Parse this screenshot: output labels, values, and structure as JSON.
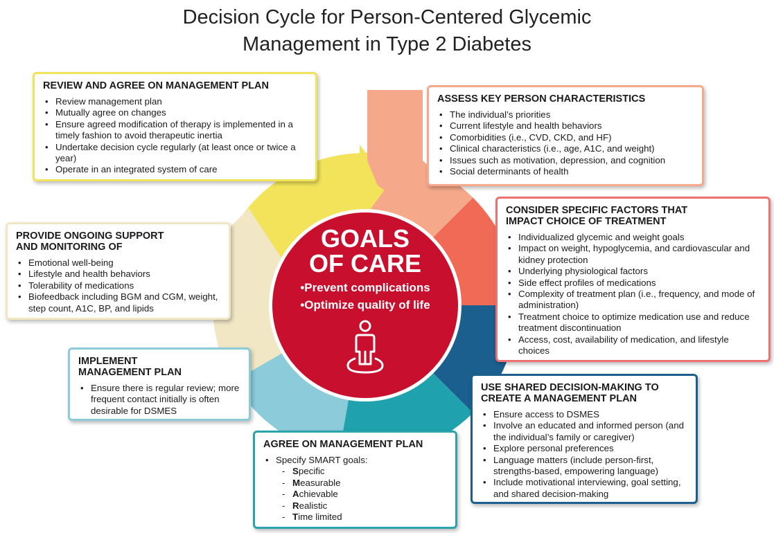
{
  "title_lines": [
    "Decision Cycle for Person-Centered Glycemic",
    "Management in Type 2 Diabetes"
  ],
  "center": {
    "heading_lines": [
      "GOALS",
      "OF CARE"
    ],
    "bullets": [
      "Prevent complications",
      "Optimize quality of life"
    ],
    "color": "#c8102e",
    "icon": "person-standing-icon"
  },
  "steps": {
    "review": {
      "heading": "REVIEW AND AGREE ON MANAGEMENT PLAN",
      "items": [
        "Review management plan",
        "Mutually agree on changes",
        "Ensure agreed modification of therapy is implemented in a timely fashion to avoid therapeutic inertia",
        "Undertake decision cycle regularly (at least once or twice a year)",
        "Operate in an integrated system of care"
      ],
      "color": "#f2e35a"
    },
    "assess": {
      "heading": "ASSESS KEY PERSON CHARACTERISTICS",
      "items": [
        "The individual’s priorities",
        "Current lifestyle and health behaviors",
        "Comorbidities (i.e., CVD, CKD, and HF)",
        "Clinical characteristics (i.e., age, A1C, and weight)",
        "Issues such as motivation, depression, and cognition",
        "Social determinants of health"
      ],
      "color": "#f5a98a"
    },
    "consider": {
      "heading_lines": [
        "CONSIDER SPECIFIC FACTORS THAT",
        "IMPACT CHOICE OF TREATMENT"
      ],
      "items": [
        "Individualized glycemic and weight goals",
        "Impact on weight, hypoglycemia, and cardiovascular and kidney protection",
        "Underlying physiological factors",
        "Side effect profiles of medications",
        "Complexity of treatment plan (i.e., frequency, and mode of administration)",
        "Treatment choice to optimize medication use and reduce treatment discontinuation",
        "Access, cost, availability of medication, and lifestyle choices"
      ],
      "color": "#ee7070"
    },
    "shared": {
      "heading_lines": [
        "USE SHARED DECISION-MAKING TO",
        "CREATE A MANAGEMENT PLAN"
      ],
      "items": [
        "Ensure access to DSMES",
        "Involve an educated and informed person (and the individual’s family or caregiver)",
        "Explore personal preferences",
        "Language matters (include person-first, strengths-based, empowering language)",
        "Include motivational interviewing, goal setting, and shared decision-making"
      ],
      "color": "#1b5f8e"
    },
    "agree": {
      "heading": "AGREE ON MANAGEMENT PLAN",
      "items": [
        "Specify SMART goals:"
      ],
      "smart": [
        {
          "letter": "S",
          "rest": "pecific"
        },
        {
          "letter": "M",
          "rest": "easurable"
        },
        {
          "letter": "A",
          "rest": "chievable"
        },
        {
          "letter": "R",
          "rest": "ealistic"
        },
        {
          "letter": "T",
          "rest": "ime limited"
        }
      ],
      "color": "#2aa3ad"
    },
    "implement": {
      "heading_lines": [
        "IMPLEMENT",
        "MANAGEMENT PLAN"
      ],
      "items": [
        "Ensure there is regular review; more frequent contact initially is often desirable for DSMES"
      ],
      "color": "#8ccbda"
    },
    "support": {
      "heading_lines": [
        "PROVIDE ONGOING SUPPORT",
        "AND MONITORING OF"
      ],
      "items": [
        "Emotional well-being",
        "Lifestyle and health behaviors",
        "Tolerability of medications",
        "Biofeedback including BGM and CGM, weight, step count, A1C, BP, and lipids"
      ],
      "color": "#f1e7c5"
    }
  }
}
